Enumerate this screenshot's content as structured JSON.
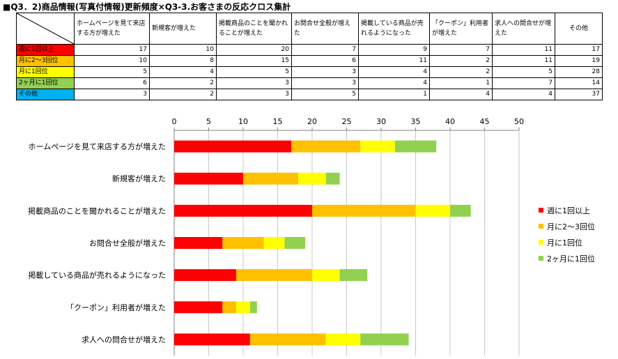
{
  "title": "■Q3．2)商品情報(写真付情報)更新頻度×Q3-3.お客さまの反応クロス集計",
  "table": {
    "columns": [
      "ホームページを見て来店する方が増えた",
      "新規客が増えた",
      "掲載商品のことを聞かれることが増えた",
      "お問合せ全般が増えた",
      "掲載している商品が売れるようになった",
      "「クーポン」利用者が増えた",
      "求人への問合せが増えた",
      "その他"
    ],
    "rows": [
      {
        "label": "週に1回以上",
        "color": "#ff0000",
        "values": [
          17,
          10,
          20,
          7,
          9,
          7,
          11,
          17
        ]
      },
      {
        "label": "月に2～3回位",
        "color": "#ffc000",
        "values": [
          10,
          8,
          15,
          6,
          11,
          2,
          11,
          19
        ]
      },
      {
        "label": "月に1回位",
        "color": "#ffff00",
        "values": [
          5,
          4,
          5,
          3,
          4,
          2,
          5,
          28
        ]
      },
      {
        "label": "2ヶ月に1回位",
        "color": "#92d050",
        "values": [
          6,
          2,
          3,
          3,
          4,
          1,
          7,
          14
        ]
      },
      {
        "label": "その他",
        "color": "#00b0f0",
        "values": [
          3,
          2,
          3,
          5,
          1,
          4,
          4,
          37
        ]
      }
    ]
  },
  "chart_data": {
    "type": "bar",
    "orientation": "horizontal",
    "stacked": true,
    "categories": [
      "ホームページを見て来店する方が増えた",
      "新規客が増えた",
      "掲載商品のことを聞かれることが増えた",
      "お問合せ全般が増えた",
      "掲載している商品が売れるようになった",
      "「クーポン」利用者が増えた",
      "求人への問合せが増えた"
    ],
    "series": [
      {
        "name": "週に1回以上",
        "color": "#ff0000",
        "values": [
          17,
          10,
          20,
          7,
          9,
          7,
          11
        ]
      },
      {
        "name": "月に2～3回位",
        "color": "#ffc000",
        "values": [
          10,
          8,
          15,
          6,
          11,
          2,
          11
        ]
      },
      {
        "name": "月に1回位",
        "color": "#ffff00",
        "values": [
          5,
          4,
          5,
          3,
          4,
          2,
          5
        ]
      },
      {
        "name": "2ヶ月に1回位",
        "color": "#92d050",
        "values": [
          6,
          2,
          3,
          3,
          4,
          1,
          7
        ]
      }
    ],
    "xlim": [
      0,
      50
    ],
    "xticks": [
      0,
      5,
      10,
      15,
      20,
      25,
      30,
      35,
      40,
      45,
      50
    ],
    "axis_position": "top",
    "grid": true,
    "legend_position": "right"
  }
}
